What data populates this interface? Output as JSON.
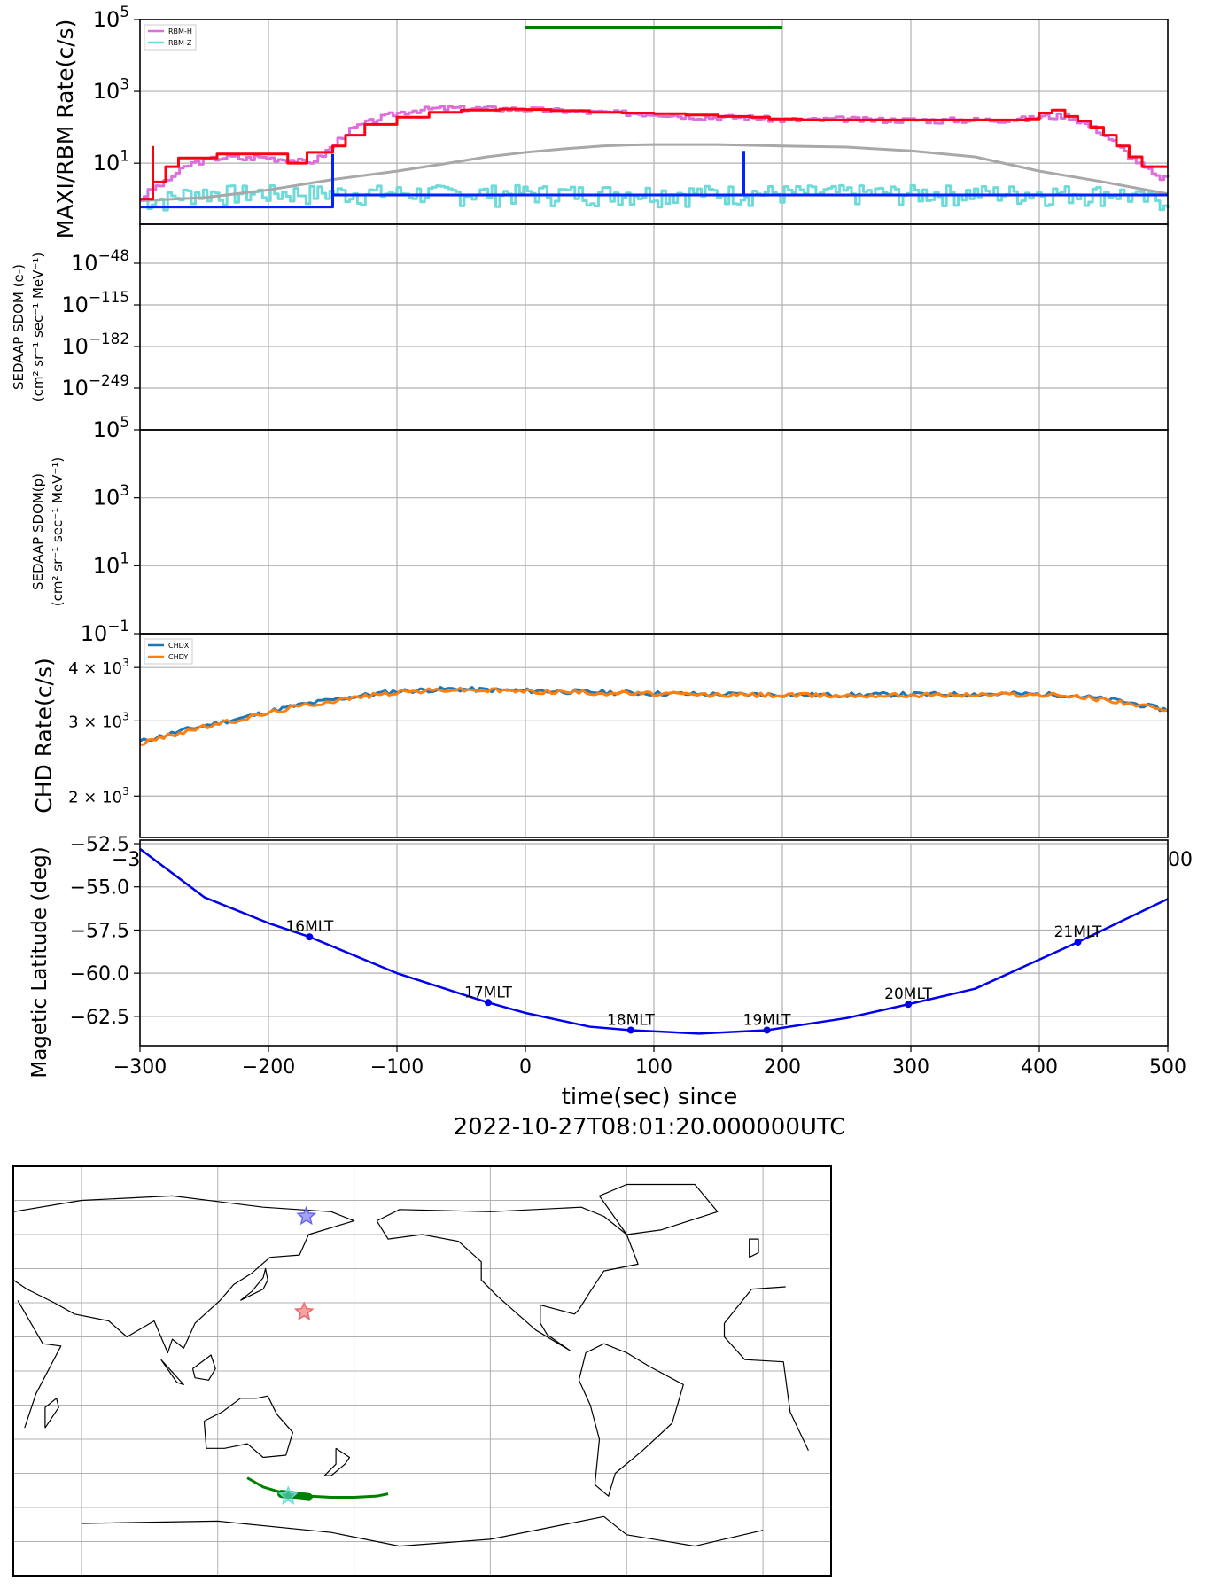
{
  "colors": {
    "rbm_h": "#dd6fdd",
    "rbm_z": "#6fdada",
    "rbm_h_fit": "#ff0011",
    "rbm_z_fit": "#0022ff",
    "background_gray": "#a8a8a8",
    "green_bar": "#008000",
    "chdx": "#1f77b4",
    "chdy": "#ff7f0e",
    "maglat_line": "#0000ee",
    "grid": "#b0b0b0",
    "star_blue": "#6666ee",
    "star_red": "#ee6666",
    "star_cyan": "#66dddd",
    "track_green": "#008000"
  },
  "chart_data": [
    {
      "type": "line",
      "panel": "MAXI/RBM",
      "ylabel": "MAXI/RBM Rate(c/s)",
      "yscale": "log",
      "ylim": [
        0.2,
        100000
      ],
      "xlim": [
        -300,
        500
      ],
      "yticks": [
        {
          "value": 10,
          "label": "10",
          "exp": "1"
        },
        {
          "value": 1000,
          "label": "10",
          "exp": "3"
        },
        {
          "value": 100000,
          "label": "10",
          "exp": "5"
        }
      ],
      "grid": true,
      "legend": {
        "placement": "top-left",
        "entries": [
          "RBM-H",
          "RBM-Z"
        ]
      },
      "green_interval": [
        0,
        200
      ],
      "series": [
        {
          "name": "RBM-H",
          "color_key": "rbm_h",
          "x": [
            -300,
            -290,
            -280,
            -270,
            -260,
            -250,
            -240,
            -230,
            -220,
            -210,
            -200,
            -190,
            -180,
            -170,
            -160,
            -150,
            -140,
            -130,
            -120,
            -110,
            -100,
            -90,
            -80,
            -70,
            -60,
            -50,
            -40,
            -30,
            -20,
            -10,
            0,
            10,
            20,
            30,
            40,
            50,
            60,
            70,
            80,
            90,
            100,
            110,
            120,
            130,
            140,
            150,
            160,
            170,
            180,
            190,
            200,
            210,
            220,
            230,
            240,
            250,
            260,
            270,
            280,
            290,
            300,
            310,
            320,
            330,
            340,
            350,
            360,
            370,
            380,
            390,
            400,
            410,
            420,
            430,
            440,
            450,
            460,
            470,
            480,
            490,
            500
          ],
          "y": [
            1,
            2,
            3,
            6,
            10,
            12,
            14,
            15,
            13,
            15,
            14,
            13,
            12,
            10,
            15,
            30,
            70,
            110,
            150,
            200,
            250,
            290,
            310,
            330,
            340,
            340,
            335,
            330,
            330,
            320,
            320,
            300,
            290,
            290,
            270,
            260,
            260,
            250,
            250,
            240,
            240,
            230,
            210,
            200,
            190,
            190,
            190,
            190,
            180,
            170,
            160,
            160,
            160,
            160,
            170,
            170,
            160,
            160,
            160,
            160,
            160,
            160,
            150,
            160,
            160,
            160,
            160,
            160,
            170,
            170,
            200,
            200,
            220,
            150,
            100,
            60,
            30,
            15,
            8,
            4,
            4
          ]
        },
        {
          "name": "RBM-Z",
          "color_key": "rbm_z",
          "x": [
            -300,
            -280,
            -260,
            -240,
            -220,
            -200,
            -180,
            -160,
            -140,
            -120,
            -100,
            -80,
            -60,
            -40,
            -20,
            0,
            20,
            40,
            60,
            80,
            100,
            120,
            140,
            160,
            180,
            200,
            220,
            240,
            260,
            280,
            300,
            320,
            340,
            360,
            380,
            400,
            420,
            440,
            460,
            480,
            500
          ],
          "y": [
            1,
            1,
            1.5,
            1.5,
            1.5,
            1.5,
            1.5,
            1.5,
            1.5,
            1.5,
            1.5,
            1.5,
            1.5,
            1.5,
            1.5,
            1.5,
            1.5,
            1.5,
            1.5,
            1.5,
            1.5,
            1.5,
            1.5,
            1.5,
            1.5,
            1.5,
            1.5,
            1.5,
            1.5,
            1.5,
            1.5,
            1.5,
            1.5,
            1.5,
            1.5,
            1.5,
            1.5,
            1.5,
            1.5,
            1,
            1
          ]
        },
        {
          "name": "",
          "color_key": "background_gray",
          "x": [
            -300,
            -250,
            -200,
            -150,
            -100,
            -60,
            -30,
            0,
            30,
            60,
            80,
            100,
            150,
            200,
            250,
            300,
            350,
            400,
            450,
            500
          ],
          "y": [
            0.9,
            1.1,
            1.8,
            3.5,
            6,
            10,
            15,
            20,
            25,
            30,
            32,
            33,
            33,
            30,
            28,
            22,
            15,
            6,
            3,
            1.4
          ]
        },
        {
          "name": "",
          "color_key": "rbm_h_fit",
          "step": true,
          "x": [
            -300,
            -290,
            -280,
            -270,
            -240,
            -185,
            -170,
            -150,
            -140,
            -125,
            -100,
            -75,
            -50,
            -20,
            0,
            20,
            50,
            75,
            100,
            125,
            150,
            175,
            190,
            215,
            275,
            300,
            325,
            350,
            390,
            400,
            410,
            420,
            430,
            440,
            450,
            460,
            470,
            480
          ],
          "y": [
            1,
            3,
            8,
            14,
            18,
            10,
            20,
            30,
            60,
            120,
            190,
            260,
            300,
            320,
            310,
            290,
            260,
            250,
            240,
            220,
            200,
            190,
            170,
            160,
            160,
            160,
            160,
            160,
            170,
            250,
            300,
            200,
            150,
            100,
            60,
            30,
            15,
            8
          ]
        },
        {
          "name": "",
          "color_key": "rbm_z_fit",
          "step": true,
          "x": [
            -300,
            -150,
            170,
            500
          ],
          "y": [
            0.6,
            1.3,
            1.3,
            1.3
          ]
        }
      ]
    },
    {
      "type": "line",
      "panel": "SEDAAP electrons",
      "ylabel": "SEDAAP SDOM (e-)",
      "ylabel_units": "(cm² sr⁻¹ sec⁻¹ MeV⁻¹)",
      "yscale": "log",
      "yticks": [
        {
          "label": "10",
          "exp": "−48"
        },
        {
          "label": "10",
          "exp": "−115"
        },
        {
          "label": "10",
          "exp": "−182"
        },
        {
          "label": "10",
          "exp": "−249"
        }
      ],
      "grid": true,
      "series": []
    },
    {
      "type": "line",
      "panel": "SEDAAP protons",
      "ylabel": "SEDAAP SDOM(p)",
      "ylabel_units": "(cm² sr⁻¹ sec⁻¹ MeV⁻¹)",
      "yscale": "log",
      "ylim": [
        0.1,
        100000
      ],
      "yticks": [
        {
          "label": "10",
          "exp": "5"
        },
        {
          "label": "10",
          "exp": "3"
        },
        {
          "label": "10",
          "exp": "1"
        },
        {
          "label": "10",
          "exp": "−1"
        }
      ],
      "grid": true,
      "series": []
    },
    {
      "type": "line",
      "panel": "CHD",
      "ylabel": "CHD Rate(c/s)",
      "yscale": "log",
      "ylim": [
        1600,
        4800
      ],
      "yticks": [
        {
          "value": 4000,
          "label": "4 × 10",
          "exp": "3"
        },
        {
          "value": 3000,
          "label": "3 × 10",
          "exp": "3"
        },
        {
          "value": 2000,
          "label": "2 × 10",
          "exp": "3"
        }
      ],
      "xtick_partial": [
        "−3",
        "00"
      ],
      "grid": true,
      "legend": {
        "placement": "top-left",
        "entries": [
          "CHDX",
          "CHDY"
        ]
      },
      "series": [
        {
          "name": "CHDX",
          "color_key": "chdx",
          "x": [
            -300,
            -260,
            -220,
            -180,
            -140,
            -100,
            -60,
            -20,
            20,
            60,
            100,
            140,
            180,
            220,
            260,
            300,
            340,
            380,
            420,
            460,
            500
          ],
          "y": [
            2680,
            2880,
            3050,
            3250,
            3400,
            3520,
            3560,
            3540,
            3520,
            3500,
            3480,
            3460,
            3460,
            3450,
            3450,
            3460,
            3460,
            3470,
            3450,
            3350,
            3180
          ]
        },
        {
          "name": "CHDY",
          "color_key": "chdy",
          "x": [
            -300,
            -260,
            -220,
            -180,
            -140,
            -100,
            -60,
            -20,
            20,
            60,
            100,
            140,
            180,
            220,
            260,
            300,
            340,
            380,
            420,
            460,
            500
          ],
          "y": [
            2650,
            2860,
            3030,
            3230,
            3380,
            3500,
            3550,
            3530,
            3510,
            3490,
            3470,
            3450,
            3450,
            3440,
            3440,
            3450,
            3450,
            3460,
            3440,
            3340,
            3160
          ]
        }
      ]
    },
    {
      "type": "line",
      "panel": "Magnetic latitude",
      "ylabel": "Magetic Latitude  (deg)",
      "ylim": [
        -64.2,
        -52.5
      ],
      "xlim": [
        -300,
        500
      ],
      "yticks": [
        -52.5,
        -55.0,
        -57.5,
        -60.0,
        -62.5
      ],
      "ytick_labels": [
        "−52.5",
        "−55.0",
        "−57.5",
        "−60.0",
        "−62.5"
      ],
      "xticks": [
        -300,
        -200,
        -100,
        0,
        100,
        200,
        300,
        400,
        500
      ],
      "xtick_labels": [
        "−300",
        "−200",
        "−100",
        "0",
        "100",
        "200",
        "300",
        "400",
        "500"
      ],
      "xlabel": "time(sec) since",
      "xlabel_line2": "2022-10-27T08:01:20.000000UTC",
      "grid": true,
      "series": [
        {
          "name": "",
          "color_key": "maglat_line",
          "x": [
            -300,
            -250,
            -200,
            -168,
            -100,
            -50,
            -29,
            0,
            50,
            82,
            135,
            188,
            250,
            298,
            350,
            430,
            500
          ],
          "y": [
            -52.8,
            -55.6,
            -57.1,
            -57.9,
            -60.0,
            -61.2,
            -61.7,
            -62.3,
            -63.1,
            -63.3,
            -63.5,
            -63.3,
            -62.6,
            -61.8,
            -60.9,
            -58.2,
            -55.7
          ]
        }
      ],
      "annotations": [
        {
          "label": "16MLT",
          "x": -168,
          "y": -57.9
        },
        {
          "label": "17MLT",
          "x": -29,
          "y": -61.7
        },
        {
          "label": "18MLT",
          "x": 82,
          "y": -63.3
        },
        {
          "label": "19MLT",
          "x": 188,
          "y": -63.3
        },
        {
          "label": "20MLT",
          "x": 298,
          "y": -61.8
        },
        {
          "label": "21MLT",
          "x": 430,
          "y": -58.2
        }
      ]
    },
    {
      "type": "scatter",
      "panel": "World map",
      "projection": "world map centred on the Pacific",
      "grid": true,
      "markers": [
        {
          "kind": "star",
          "color_key": "star_blue",
          "lon": 159,
          "lat": 68
        },
        {
          "kind": "star",
          "color_key": "star_red",
          "lon": 158,
          "lat": 26
        },
        {
          "kind": "star",
          "color_key": "star_cyan",
          "lon": 151,
          "lat": -55
        }
      ],
      "track": {
        "color_key": "track_green",
        "lon": [
          133,
          140,
          150,
          160,
          170,
          180,
          190,
          195
        ],
        "lat": [
          -47,
          -51,
          -54,
          -55,
          -55.5,
          -55.5,
          -55,
          -54
        ]
      }
    }
  ]
}
